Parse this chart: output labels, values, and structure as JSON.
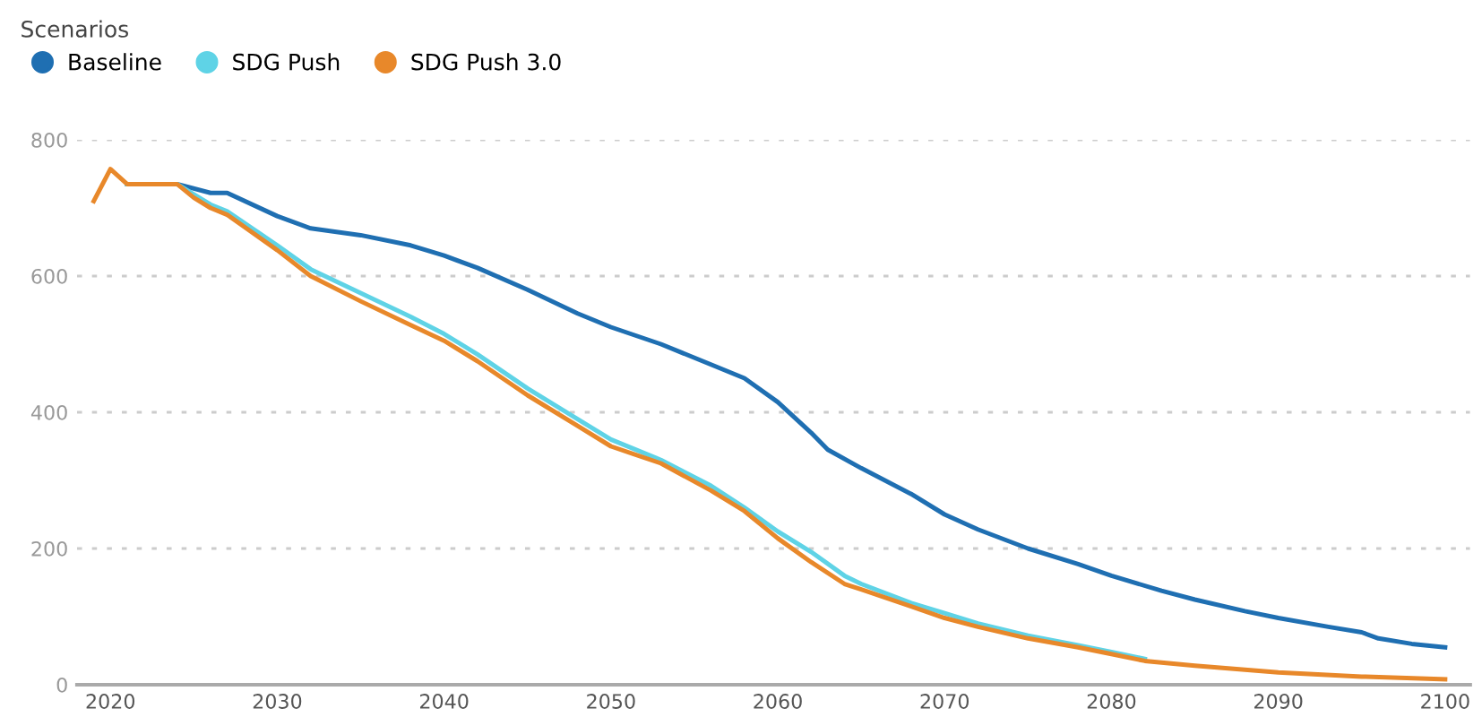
{
  "chart_data": {
    "type": "line",
    "legend_title": "Scenarios",
    "legend": "top left",
    "grid": "y",
    "line_style": "solid",
    "xlim": [
      2018,
      2101.5
    ],
    "xticks": [
      2020,
      2030,
      2040,
      2050,
      2060,
      2070,
      2080,
      2090,
      2100
    ],
    "ylim": [
      0,
      800
    ],
    "yticks": [
      0,
      200,
      400,
      600,
      800
    ],
    "series": [
      {
        "name": "Baseline",
        "color": "#1f6fb2",
        "x": [
          2021,
          2024,
          2026,
          2027,
          2030,
          2032,
          2035,
          2038,
          2040,
          2042,
          2045,
          2048,
          2050,
          2053,
          2056,
          2058,
          2060,
          2062,
          2063,
          2065,
          2068,
          2070,
          2072,
          2075,
          2078,
          2080,
          2083,
          2085,
          2088,
          2090,
          2093,
          2095,
          2096,
          2098,
          2100
        ],
        "values": [
          735,
          735,
          722,
          722,
          688,
          670,
          660,
          645,
          630,
          612,
          580,
          545,
          525,
          500,
          470,
          450,
          415,
          370,
          345,
          318,
          280,
          250,
          228,
          200,
          177,
          160,
          138,
          125,
          108,
          98,
          85,
          77,
          68,
          60,
          55
        ]
      },
      {
        "name": "SDG Push",
        "color": "#5fd3e6",
        "x": [
          2021,
          2024,
          2025,
          2026,
          2027,
          2030,
          2032,
          2035,
          2038,
          2040,
          2042,
          2045,
          2048,
          2050,
          2053,
          2056,
          2058,
          2060,
          2062,
          2064,
          2065,
          2068,
          2070,
          2072,
          2075,
          2078,
          2080,
          2082
        ],
        "values": [
          735,
          735,
          720,
          705,
          695,
          645,
          610,
          575,
          540,
          515,
          485,
          435,
          390,
          360,
          330,
          292,
          260,
          225,
          195,
          160,
          148,
          120,
          105,
          90,
          72,
          58,
          48,
          38
        ]
      },
      {
        "name": "SDG Push 3.0",
        "color": "#e8882a",
        "x": [
          2019,
          2020,
          2021,
          2024,
          2025,
          2026,
          2027,
          2030,
          2032,
          2035,
          2038,
          2040,
          2042,
          2045,
          2048,
          2050,
          2053,
          2056,
          2058,
          2060,
          2062,
          2064,
          2065,
          2068,
          2070,
          2072,
          2075,
          2078,
          2080,
          2082,
          2085,
          2090,
          2095,
          2100
        ],
        "values": [
          710,
          757,
          735,
          735,
          715,
          700,
          690,
          638,
          600,
          563,
          528,
          505,
          475,
          425,
          380,
          350,
          325,
          285,
          255,
          215,
          180,
          148,
          140,
          115,
          98,
          85,
          68,
          55,
          45,
          35,
          28,
          18,
          12,
          8
        ]
      }
    ]
  }
}
